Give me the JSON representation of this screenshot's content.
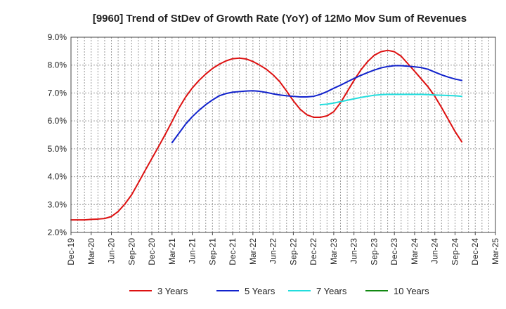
{
  "chart_data": {
    "type": "line",
    "title": "[9960]  Trend of StDev of Growth Rate (YoY) of 12Mo Mov Sum of Revenues",
    "xlabel": "",
    "ylabel": "",
    "ylim": [
      2.0,
      9.0
    ],
    "y_ticks": [
      2.0,
      3.0,
      4.0,
      5.0,
      6.0,
      7.0,
      8.0,
      9.0
    ],
    "y_tick_labels": [
      "2.0%",
      "3.0%",
      "4.0%",
      "5.0%",
      "6.0%",
      "7.0%",
      "8.0%",
      "9.0%"
    ],
    "x_tick_labels": [
      "Dec-19",
      "Mar-20",
      "Jun-20",
      "Sep-20",
      "Dec-20",
      "Mar-21",
      "Jun-21",
      "Sep-21",
      "Dec-21",
      "Mar-22",
      "Jun-22",
      "Sep-22",
      "Dec-22",
      "Mar-23",
      "Jun-23",
      "Sep-23",
      "Dec-23",
      "Mar-24",
      "Jun-24",
      "Sep-24",
      "Dec-24",
      "Mar-25"
    ],
    "grid": true,
    "legend_position": "bottom",
    "series": [
      {
        "name": "3 Years",
        "color": "#dd1111",
        "values": [
          2.45,
          2.45,
          2.45,
          2.47,
          2.48,
          2.5,
          2.57,
          2.75,
          3.02,
          3.35,
          3.78,
          4.22,
          4.65,
          5.08,
          5.52,
          5.98,
          6.45,
          6.85,
          7.18,
          7.45,
          7.68,
          7.88,
          8.03,
          8.15,
          8.23,
          8.25,
          8.22,
          8.13,
          8.0,
          7.85,
          7.65,
          7.4,
          7.07,
          6.72,
          6.42,
          6.22,
          6.13,
          6.13,
          6.18,
          6.33,
          6.65,
          7.05,
          7.45,
          7.82,
          8.12,
          8.35,
          8.48,
          8.53,
          8.48,
          8.32,
          8.05,
          7.78,
          7.5,
          7.22,
          6.88,
          6.48,
          6.05,
          5.62,
          5.25
        ]
      },
      {
        "name": "5 Years",
        "color": "#1122cc",
        "values": [
          null,
          null,
          null,
          null,
          null,
          null,
          null,
          null,
          null,
          null,
          null,
          null,
          null,
          null,
          null,
          5.22,
          5.55,
          5.88,
          6.15,
          6.38,
          6.58,
          6.75,
          6.9,
          6.98,
          7.03,
          7.05,
          7.07,
          7.08,
          7.06,
          7.02,
          6.97,
          6.93,
          6.9,
          6.88,
          6.86,
          6.86,
          6.88,
          6.95,
          7.05,
          7.17,
          7.28,
          7.4,
          7.52,
          7.63,
          7.73,
          7.82,
          7.9,
          7.95,
          7.98,
          7.98,
          7.96,
          7.94,
          7.91,
          7.85,
          7.75,
          7.65,
          7.57,
          7.5,
          7.45
        ]
      },
      {
        "name": "7 Years",
        "color": "#22dddd",
        "values": [
          null,
          null,
          null,
          null,
          null,
          null,
          null,
          null,
          null,
          null,
          null,
          null,
          null,
          null,
          null,
          null,
          null,
          null,
          null,
          null,
          null,
          null,
          null,
          null,
          null,
          null,
          null,
          null,
          null,
          null,
          null,
          null,
          null,
          null,
          null,
          null,
          null,
          6.58,
          6.6,
          6.64,
          6.69,
          6.74,
          6.79,
          6.84,
          6.88,
          6.92,
          6.94,
          6.95,
          6.95,
          6.95,
          6.95,
          6.95,
          6.95,
          6.94,
          6.93,
          6.92,
          6.91,
          6.9,
          6.88
        ]
      },
      {
        "name": "10 Years",
        "color": "#118811",
        "values": []
      }
    ]
  }
}
